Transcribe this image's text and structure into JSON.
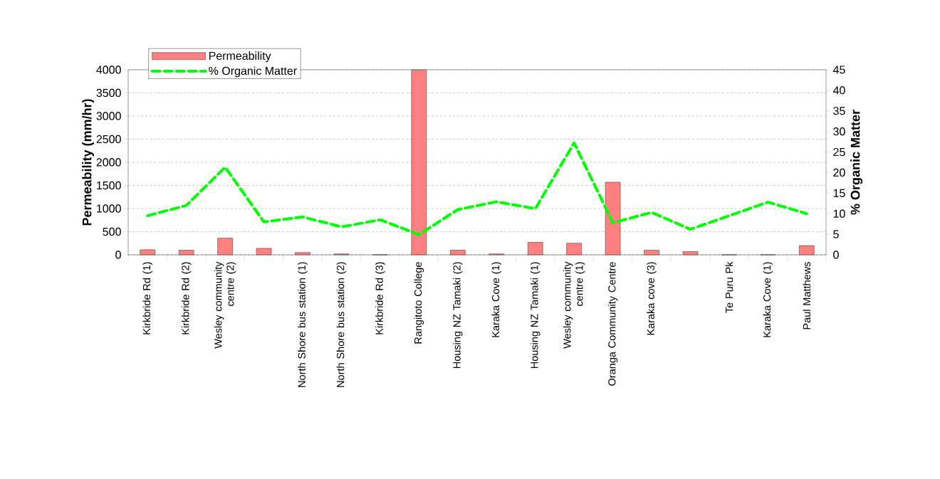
{
  "chart_data": {
    "type": "bar",
    "categories": [
      "Kirkbride Rd (1)",
      "Kirkbride Rd (2)",
      "Wesley community centre (2)",
      null,
      "North Shore bus station (1)",
      "North Shore bus station (2)",
      "Kirkbride Rd (3)",
      "Rangitoto College",
      "Housing NZ Tamaki (2)",
      "Karaka Cove (1)",
      "Housing NZ Tamaki (1)",
      "Wesley community centre (1)",
      "Oranga Community Centre",
      "Karaka cove (3)",
      null,
      "Te Puru Pk",
      "Karaka Cove (1)",
      "Paul Matthews"
    ],
    "series": [
      {
        "name": "Permeability",
        "color": "#ff8080",
        "values": [
          110,
          100,
          360,
          140,
          50,
          20,
          0,
          4000,
          100,
          20,
          270,
          250,
          1570,
          100,
          70,
          0,
          0,
          200
        ]
      },
      {
        "name": "% Organic  Matter",
        "type": "line",
        "axis": "y2",
        "color": "#00ff00",
        "line_style": "dashed",
        "values": [
          9.5,
          12,
          21.3,
          8,
          9.2,
          6.8,
          8.5,
          4.9,
          11,
          12.9,
          11.2,
          27.2,
          7.8,
          10.3,
          6.2,
          9.5,
          12.8,
          10
        ]
      }
    ],
    "ylabel": "Permeability (mm/hr)",
    "y2label": "% Organic Matter",
    "ylim": [
      0,
      4000
    ],
    "yticks": [
      0,
      500,
      1000,
      1500,
      2000,
      2500,
      3000,
      3500,
      4000
    ],
    "y2lim": [
      0,
      45
    ],
    "y2ticks": [
      0,
      5,
      10,
      15,
      20,
      25,
      30,
      35,
      40,
      45
    ],
    "grid": "y",
    "legend": "top left"
  }
}
